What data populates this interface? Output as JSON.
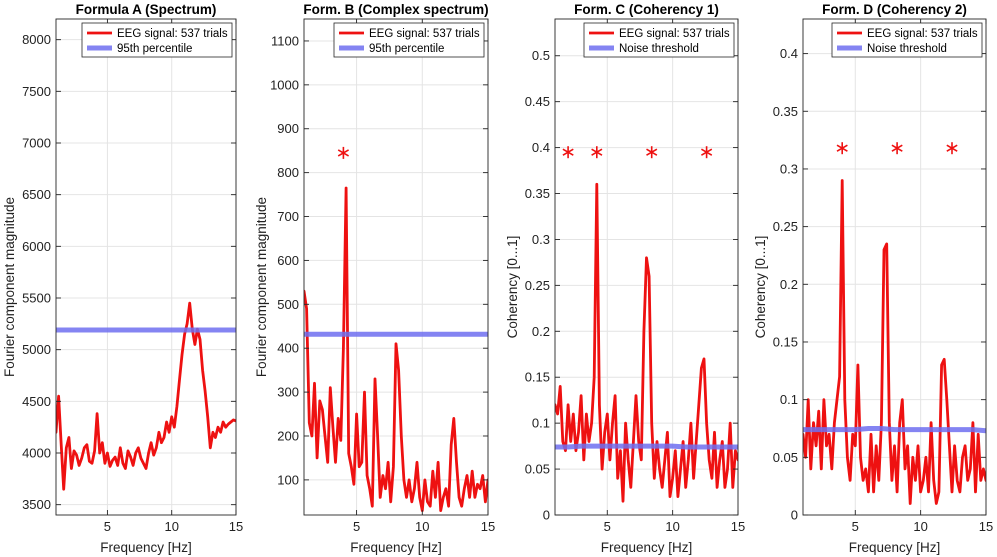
{
  "chart_data": [
    {
      "type": "line",
      "title": "Formula A (Spectrum)",
      "xlabel": "Frequency [Hz]",
      "ylabel": "Fourier component magnitude",
      "xlim": [
        1,
        15
      ],
      "ylim": [
        3400,
        8200
      ],
      "xticks": [
        5,
        10,
        15
      ],
      "yticks": [
        3500,
        4000,
        4500,
        5000,
        5500,
        6000,
        6500,
        7000,
        7500,
        8000
      ],
      "legend_position": "top-right",
      "series": [
        {
          "name": "EEG signal: 537 trials",
          "color": "#ee1111",
          "x": [
            1.0,
            1.2,
            1.4,
            1.6,
            1.8,
            2.0,
            2.2,
            2.4,
            2.6,
            2.8,
            3.0,
            3.2,
            3.4,
            3.6,
            3.8,
            4.0,
            4.2,
            4.4,
            4.6,
            4.8,
            5.0,
            5.2,
            5.4,
            5.6,
            5.8,
            6.0,
            6.2,
            6.4,
            6.6,
            6.8,
            7.0,
            7.2,
            7.4,
            7.6,
            7.8,
            8.0,
            8.2,
            8.4,
            8.6,
            8.8,
            9.0,
            9.2,
            9.4,
            9.6,
            9.8,
            10.0,
            10.2,
            10.4,
            10.6,
            10.8,
            11.0,
            11.2,
            11.4,
            11.6,
            11.8,
            12.0,
            12.2,
            12.4,
            12.6,
            12.8,
            13.0,
            13.2,
            13.4,
            13.6,
            13.8,
            14.0,
            14.2,
            14.4,
            14.6,
            14.8,
            15.0
          ],
          "y": [
            4200,
            4550,
            4100,
            3650,
            4050,
            4150,
            3850,
            4020,
            3980,
            3880,
            3950,
            4050,
            4080,
            3920,
            3900,
            4020,
            4380,
            4000,
            4100,
            3900,
            4000,
            3870,
            3930,
            3960,
            3880,
            4050,
            3900,
            3850,
            4020,
            3960,
            3880,
            4000,
            4050,
            3950,
            3900,
            3850,
            4000,
            4100,
            3980,
            4050,
            4200,
            4100,
            4150,
            4300,
            4200,
            4350,
            4250,
            4450,
            4700,
            4950,
            5150,
            5250,
            5450,
            5200,
            5050,
            5200,
            5100,
            4800,
            4600,
            4350,
            4050,
            4200,
            4150,
            4250,
            4200,
            4300,
            4250,
            4280,
            4300,
            4320,
            4310
          ]
        },
        {
          "name": "95th percentile",
          "color": "#6f6ff0",
          "x": [
            1,
            15
          ],
          "y": [
            5190,
            5190
          ]
        }
      ],
      "markers": []
    },
    {
      "type": "line",
      "title": "Form. B (Complex spectrum)",
      "xlabel": "Frequency [Hz]",
      "ylabel": "Fourier component magnitude",
      "xlim": [
        1,
        15
      ],
      "ylim": [
        20,
        1150
      ],
      "xticks": [
        5,
        10,
        15
      ],
      "yticks": [
        100,
        200,
        300,
        400,
        500,
        600,
        700,
        800,
        900,
        1000,
        1100
      ],
      "legend_position": "top-right",
      "series": [
        {
          "name": "EEG signal: 537 trials",
          "color": "#ee1111",
          "x": [
            1.0,
            1.2,
            1.4,
            1.6,
            1.8,
            2.0,
            2.2,
            2.4,
            2.6,
            2.8,
            3.0,
            3.2,
            3.4,
            3.6,
            3.8,
            4.0,
            4.2,
            4.4,
            4.6,
            4.8,
            5.0,
            5.2,
            5.4,
            5.6,
            5.8,
            6.0,
            6.2,
            6.4,
            6.6,
            6.8,
            7.0,
            7.2,
            7.4,
            7.6,
            7.8,
            8.0,
            8.2,
            8.4,
            8.6,
            8.8,
            9.0,
            9.2,
            9.4,
            9.6,
            9.8,
            10.0,
            10.2,
            10.4,
            10.6,
            10.8,
            11.0,
            11.2,
            11.4,
            11.6,
            11.8,
            12.0,
            12.2,
            12.4,
            12.6,
            12.8,
            13.0,
            13.2,
            13.4,
            13.6,
            13.8,
            14.0,
            14.2,
            14.4,
            14.6,
            14.8,
            15.0
          ],
          "y": [
            530,
            490,
            230,
            200,
            320,
            150,
            280,
            260,
            200,
            140,
            310,
            220,
            140,
            240,
            190,
            400,
            765,
            160,
            130,
            90,
            250,
            130,
            140,
            300,
            110,
            80,
            40,
            330,
            200,
            60,
            110,
            80,
            140,
            50,
            130,
            410,
            350,
            200,
            100,
            60,
            100,
            50,
            80,
            140,
            60,
            30,
            100,
            50,
            40,
            120,
            60,
            140,
            30,
            60,
            80,
            40,
            180,
            240,
            140,
            60,
            40,
            80,
            110,
            60,
            120,
            60,
            90,
            80,
            110,
            50,
            100
          ]
        },
        {
          "name": "95th percentile",
          "color": "#6f6ff0",
          "x": [
            1,
            15
          ],
          "y": [
            432,
            432
          ]
        }
      ],
      "markers": [
        {
          "x": 4.0,
          "y": 845
        }
      ]
    },
    {
      "type": "line",
      "title": "Form. C (Coherency 1)",
      "xlabel": "Frequency [Hz]",
      "ylabel": "Coherency [0...1]",
      "xlim": [
        1,
        15
      ],
      "ylim": [
        0,
        0.54
      ],
      "xticks": [
        5,
        10,
        15
      ],
      "yticks": [
        0,
        0.05,
        0.1,
        0.15,
        0.2,
        0.25,
        0.3,
        0.35,
        0.4,
        0.45,
        0.5
      ],
      "legend_position": "top-right",
      "series": [
        {
          "name": "EEG signal: 537 trials",
          "color": "#ee1111",
          "x": [
            1.0,
            1.2,
            1.4,
            1.6,
            1.8,
            2.0,
            2.2,
            2.4,
            2.6,
            2.8,
            3.0,
            3.2,
            3.4,
            3.6,
            3.8,
            4.0,
            4.2,
            4.4,
            4.6,
            4.8,
            5.0,
            5.2,
            5.4,
            5.6,
            5.8,
            6.0,
            6.2,
            6.4,
            6.6,
            6.8,
            7.0,
            7.2,
            7.4,
            7.6,
            7.8,
            8.0,
            8.2,
            8.4,
            8.6,
            8.8,
            9.0,
            9.2,
            9.4,
            9.6,
            9.8,
            10.0,
            10.2,
            10.4,
            10.6,
            10.8,
            11.0,
            11.2,
            11.4,
            11.6,
            11.8,
            12.0,
            12.2,
            12.4,
            12.6,
            12.8,
            13.0,
            13.2,
            13.4,
            13.6,
            13.8,
            14.0,
            14.2,
            14.4,
            14.6,
            14.8,
            15.0
          ],
          "y": [
            0.12,
            0.11,
            0.14,
            0.08,
            0.07,
            0.12,
            0.08,
            0.11,
            0.07,
            0.09,
            0.13,
            0.06,
            0.11,
            0.08,
            0.1,
            0.15,
            0.36,
            0.12,
            0.05,
            0.09,
            0.11,
            0.06,
            0.1,
            0.13,
            0.04,
            0.07,
            0.015,
            0.1,
            0.06,
            0.03,
            0.08,
            0.13,
            0.08,
            0.06,
            0.2,
            0.28,
            0.26,
            0.1,
            0.04,
            0.08,
            0.05,
            0.03,
            0.06,
            0.09,
            0.02,
            0.04,
            0.07,
            0.02,
            0.05,
            0.08,
            0.03,
            0.06,
            0.1,
            0.04,
            0.08,
            0.12,
            0.16,
            0.17,
            0.1,
            0.06,
            0.04,
            0.09,
            0.03,
            0.06,
            0.08,
            0.03,
            0.05,
            0.1,
            0.03,
            0.07,
            0.06
          ]
        },
        {
          "name": "Noise threshold",
          "color": "#6f6ff0",
          "x": [
            1.0,
            2.0,
            3.0,
            4.0,
            5.0,
            6.0,
            7.0,
            8.0,
            9.0,
            10.0,
            11.0,
            12.0,
            13.0,
            14.0,
            15.0
          ],
          "y": [
            0.074,
            0.074,
            0.075,
            0.075,
            0.075,
            0.075,
            0.075,
            0.075,
            0.075,
            0.075,
            0.074,
            0.074,
            0.074,
            0.074,
            0.074
          ]
        }
      ],
      "markers": [
        {
          "x": 2.0,
          "y": 0.395
        },
        {
          "x": 4.2,
          "y": 0.395
        },
        {
          "x": 8.4,
          "y": 0.395
        },
        {
          "x": 12.6,
          "y": 0.395
        }
      ]
    },
    {
      "type": "line",
      "title": "Form. D (Coherency 2)",
      "xlabel": "Frequency [Hz]",
      "ylabel": "Coherency [0...1]",
      "xlim": [
        1,
        15
      ],
      "ylim": [
        0,
        0.43
      ],
      "xticks": [
        5,
        10,
        15
      ],
      "yticks": [
        0,
        0.05,
        0.1,
        0.15,
        0.2,
        0.25,
        0.3,
        0.35,
        0.4
      ],
      "legend_position": "top-right",
      "series": [
        {
          "name": "EEG signal: 537 trials",
          "color": "#ee1111",
          "x": [
            1.0,
            1.2,
            1.4,
            1.6,
            1.8,
            2.0,
            2.2,
            2.4,
            2.6,
            2.8,
            3.0,
            3.2,
            3.4,
            3.6,
            3.8,
            4.0,
            4.2,
            4.4,
            4.6,
            4.8,
            5.0,
            5.2,
            5.4,
            5.6,
            5.8,
            6.0,
            6.2,
            6.4,
            6.6,
            6.8,
            7.0,
            7.2,
            7.4,
            7.6,
            7.8,
            8.0,
            8.2,
            8.4,
            8.6,
            8.8,
            9.0,
            9.2,
            9.4,
            9.6,
            9.8,
            10.0,
            10.2,
            10.4,
            10.6,
            10.8,
            11.0,
            11.2,
            11.4,
            11.6,
            11.8,
            12.0,
            12.2,
            12.4,
            12.6,
            12.8,
            13.0,
            13.2,
            13.4,
            13.6,
            13.8,
            14.0,
            14.2,
            14.4,
            14.6,
            14.8,
            15.0
          ],
          "y": [
            0.07,
            0.05,
            0.1,
            0.04,
            0.08,
            0.06,
            0.09,
            0.04,
            0.1,
            0.06,
            0.07,
            0.04,
            0.08,
            0.1,
            0.12,
            0.29,
            0.1,
            0.05,
            0.03,
            0.07,
            0.06,
            0.13,
            0.05,
            0.03,
            0.04,
            0.02,
            0.07,
            0.02,
            0.06,
            0.03,
            0.08,
            0.23,
            0.235,
            0.08,
            0.03,
            0.06,
            0.02,
            0.08,
            0.1,
            0.04,
            0.06,
            0.01,
            0.05,
            0.03,
            0.06,
            0.02,
            0.03,
            0.05,
            0.02,
            0.08,
            0.03,
            0.01,
            0.02,
            0.13,
            0.135,
            0.1,
            0.06,
            0.02,
            0.06,
            0.03,
            0.02,
            0.05,
            0.06,
            0.03,
            0.04,
            0.08,
            0.02,
            0.07,
            0.03,
            0.04,
            0.03
          ]
        },
        {
          "name": "Noise threshold",
          "color": "#6f6ff0",
          "x": [
            1.0,
            2.0,
            3.0,
            4.0,
            5.0,
            6.0,
            7.0,
            8.0,
            9.0,
            10.0,
            11.0,
            12.0,
            13.0,
            14.0,
            15.0
          ],
          "y": [
            0.074,
            0.074,
            0.074,
            0.074,
            0.074,
            0.075,
            0.075,
            0.074,
            0.074,
            0.074,
            0.074,
            0.074,
            0.074,
            0.074,
            0.073
          ]
        }
      ],
      "markers": [
        {
          "x": 4.0,
          "y": 0.318
        },
        {
          "x": 8.2,
          "y": 0.318
        },
        {
          "x": 12.4,
          "y": 0.318
        }
      ]
    }
  ]
}
